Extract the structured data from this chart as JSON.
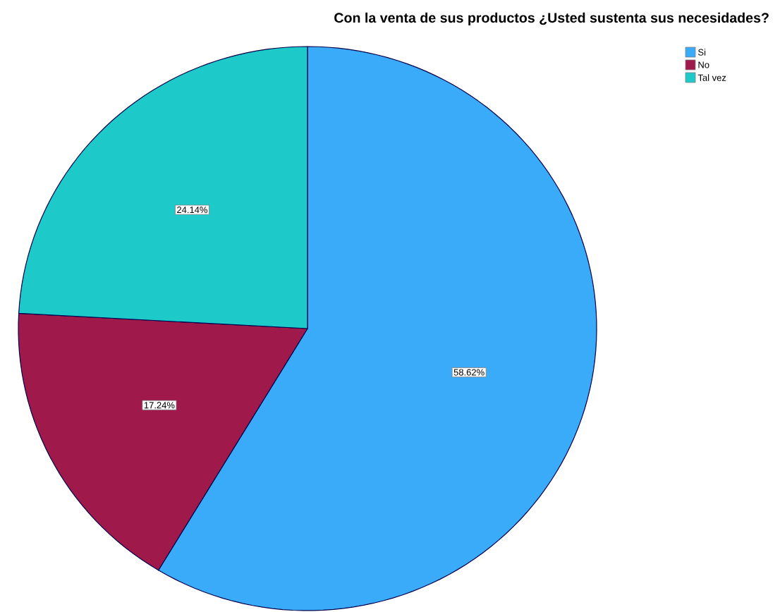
{
  "chart_data": {
    "type": "pie",
    "title": "Con la venta de sus productos ¿Usted sustenta sus necesidades?",
    "categories": [
      "Si",
      "No",
      "Tal vez"
    ],
    "values": [
      58.62,
      17.24,
      24.14
    ],
    "value_labels": [
      "58.62%",
      "17.24%",
      "24.14%"
    ],
    "colors": [
      "#3aabf8",
      "#a0194b",
      "#1ec9c9"
    ],
    "legend": "top right"
  }
}
